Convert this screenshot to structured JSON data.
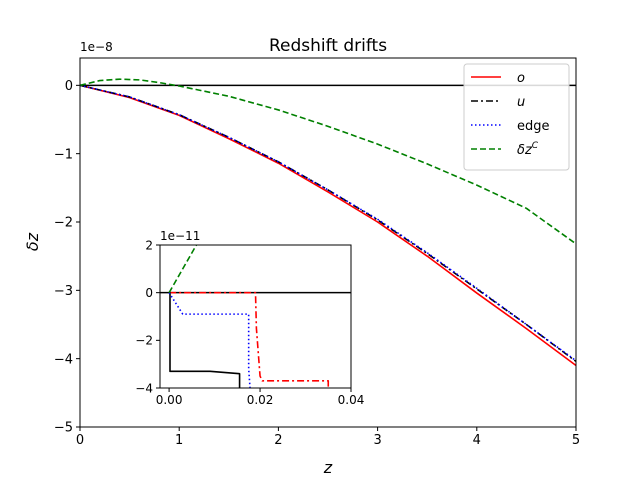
{
  "chart_data": [
    {
      "type": "line",
      "title": "Redshift drifts",
      "xlabel": "z",
      "ylabel": "δz",
      "offset_text": "1e−8",
      "xlim": [
        0,
        5
      ],
      "ylim": [
        -5,
        0.4
      ],
      "xticks": [
        {
          "v": 0,
          "label": "0"
        },
        {
          "v": 1,
          "label": "1"
        },
        {
          "v": 2,
          "label": "2"
        },
        {
          "v": 3,
          "label": "3"
        },
        {
          "v": 4,
          "label": "4"
        },
        {
          "v": 5,
          "label": "5"
        }
      ],
      "yticks": [
        {
          "v": 0,
          "label": "0"
        },
        {
          "v": -1,
          "label": "−1"
        },
        {
          "v": -2,
          "label": "−2"
        },
        {
          "v": -3,
          "label": "−3"
        },
        {
          "v": -4,
          "label": "−4"
        },
        {
          "v": -5,
          "label": "−5"
        }
      ],
      "grid": false,
      "legend_position": "top-right",
      "hline": {
        "y": 0,
        "color": "#000000"
      },
      "series": [
        {
          "name": "o",
          "italic": true,
          "color": "#ff0000",
          "style": "solid",
          "x": [
            0,
            0.5,
            1,
            1.5,
            2,
            2.5,
            3,
            3.5,
            4,
            4.5,
            5
          ],
          "y": [
            0,
            -0.18,
            -0.44,
            -0.78,
            -1.14,
            -1.56,
            -2.0,
            -2.5,
            -3.04,
            -3.56,
            -4.1
          ]
        },
        {
          "name": "u",
          "italic": true,
          "color": "#000000",
          "style": "dashdot",
          "x": [
            0,
            0.5,
            1,
            1.5,
            2,
            2.5,
            3,
            3.5,
            4,
            4.5,
            5
          ],
          "y": [
            0,
            -0.17,
            -0.43,
            -0.76,
            -1.12,
            -1.53,
            -1.97,
            -2.46,
            -2.98,
            -3.5,
            -4.04
          ]
        },
        {
          "name": "edge",
          "italic": false,
          "color": "#0000ff",
          "style": "dotted",
          "x": [
            0,
            0.5,
            1,
            1.5,
            2,
            2.5,
            3,
            3.5,
            4,
            4.5,
            5
          ],
          "y": [
            0,
            -0.17,
            -0.43,
            -0.76,
            -1.12,
            -1.53,
            -1.96,
            -2.45,
            -2.97,
            -3.5,
            -4.03
          ]
        },
        {
          "name": "δz^C",
          "label_main": "δz",
          "label_sup": "C",
          "italic": true,
          "color": "#008000",
          "style": "dashed",
          "x": [
            0,
            0.2,
            0.4,
            0.6,
            0.8,
            1,
            1.5,
            2,
            2.5,
            3,
            3.5,
            4,
            4.5,
            5
          ],
          "y": [
            0,
            0.07,
            0.09,
            0.08,
            0.04,
            -0.01,
            -0.16,
            -0.36,
            -0.6,
            -0.86,
            -1.15,
            -1.46,
            -1.8,
            -2.32
          ]
        }
      ]
    },
    {
      "type": "line",
      "role": "inset",
      "offset_text": "1e−11",
      "xlim": [
        -0.002,
        0.04
      ],
      "ylim": [
        -4,
        2
      ],
      "xticks": [
        {
          "v": 0,
          "label": "0.00"
        },
        {
          "v": 0.02,
          "label": "0.02"
        },
        {
          "v": 0.04,
          "label": "0.04"
        }
      ],
      "yticks": [
        {
          "v": 2,
          "label": "2"
        },
        {
          "v": 0,
          "label": "0"
        },
        {
          "v": -2,
          "label": "−2"
        },
        {
          "v": -4,
          "label": "−4"
        }
      ],
      "grid": false,
      "hline": {
        "y": 0,
        "color": "#000000"
      },
      "series": [
        {
          "name": "o",
          "color": "#ff0000",
          "style": "dashdot",
          "x": [
            0,
            0.019,
            0.0192,
            0.02,
            0.0205,
            0.035,
            0.035
          ],
          "y": [
            0,
            0,
            -1.5,
            -3.5,
            -3.7,
            -3.7,
            -4.0
          ]
        },
        {
          "name": "u",
          "color": "#000000",
          "style": "solid",
          "x": [
            0,
            0.0002,
            0.0002,
            0.009,
            0.0155,
            0.0155
          ],
          "y": [
            0,
            0,
            -3.3,
            -3.3,
            -3.4,
            -4.0
          ]
        },
        {
          "name": "edge",
          "color": "#0000ff",
          "style": "dotted",
          "x": [
            0,
            0.001,
            0.003,
            0.0175,
            0.0175,
            0.0178
          ],
          "y": [
            0,
            -0.3,
            -0.9,
            -0.9,
            -3.2,
            -4.0
          ]
        },
        {
          "name": "δz^C",
          "color": "#008000",
          "style": "dashed",
          "x": [
            0,
            0.006
          ],
          "y": [
            0,
            2.0
          ]
        }
      ]
    }
  ]
}
